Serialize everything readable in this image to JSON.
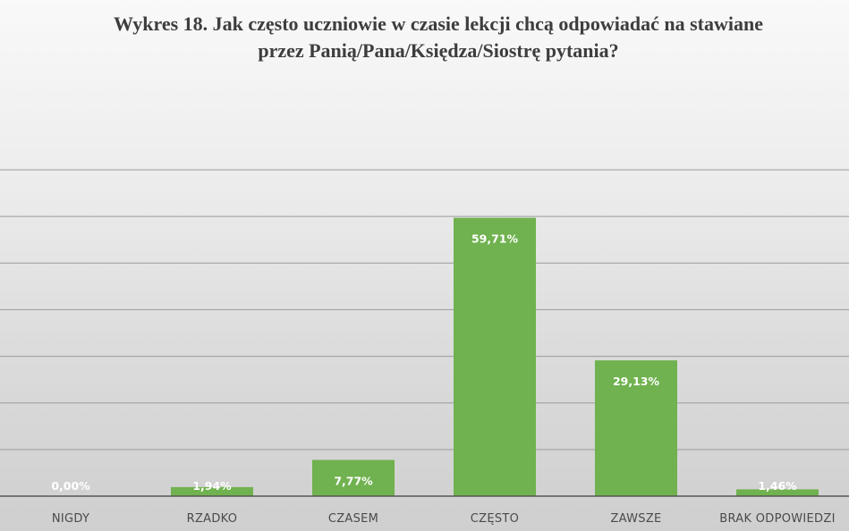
{
  "chart_data": {
    "type": "bar",
    "title": "Wykres 18. Jak często uczniowie w czasie lekcji chcą odpowiadać na stawiane przez Panią/Pana/Księdza/Siostrę pytania?",
    "categories": [
      "NIGDY",
      "RZADKO",
      "CZASEM",
      "CZĘSTO",
      "ZAWSZE",
      "BRAK ODPOWIEDZI"
    ],
    "values": [
      0.0,
      1.94,
      7.77,
      59.71,
      29.13,
      1.46
    ],
    "data_labels": [
      "0,00%",
      "1,94%",
      "7,77%",
      "59,71%",
      "29,13%",
      "1,46%"
    ],
    "xlabel": "",
    "ylabel": "",
    "ylim": [
      0,
      70
    ],
    "grid": true,
    "legend": "none",
    "colors": {
      "bar": "#70b24f",
      "gridline": "#9a9a9a",
      "axis": "#555555",
      "title": "#3d3d3d"
    }
  }
}
